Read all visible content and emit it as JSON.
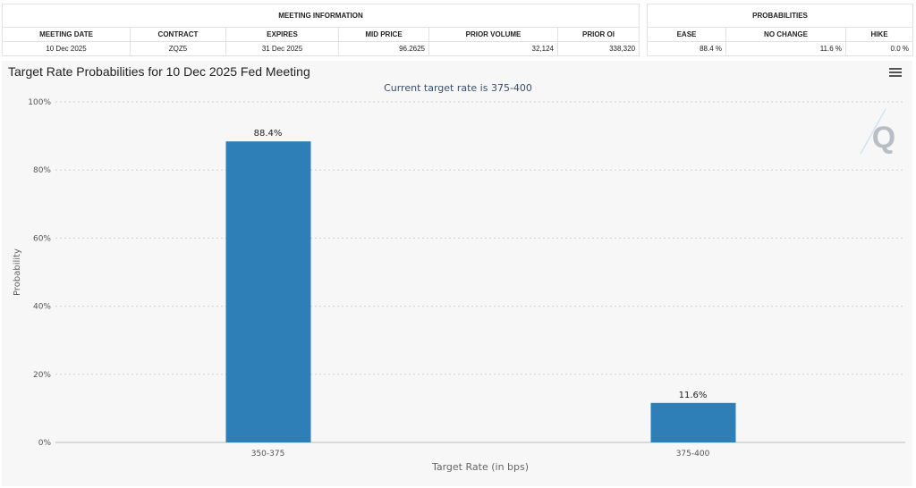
{
  "meeting_info": {
    "title": "MEETING INFORMATION",
    "headers": [
      "MEETING DATE",
      "CONTRACT",
      "EXPIRES",
      "MID PRICE",
      "PRIOR VOLUME",
      "PRIOR OI"
    ],
    "values": [
      "10 Dec 2025",
      "ZQZ5",
      "31 Dec 2025",
      "96.2625",
      "32,124",
      "338,320"
    ]
  },
  "probabilities": {
    "title": "PROBABILITIES",
    "headers": [
      "EASE",
      "NO CHANGE",
      "HIKE"
    ],
    "values": [
      "88.4 %",
      "11.6 %",
      "0.0 %"
    ]
  },
  "chart_data": {
    "type": "bar",
    "title": "Target Rate Probabilities for 10 Dec 2025 Fed Meeting",
    "subtitle": "Current target rate is 375-400",
    "categories": [
      "350-375",
      "375-400"
    ],
    "values": [
      88.4,
      11.6
    ],
    "data_labels": [
      "88.4%",
      "11.6%"
    ],
    "xlabel": "Target Rate (in bps)",
    "ylabel": "Probability",
    "ylim": [
      0,
      100
    ],
    "yticks": [
      "0%",
      "20%",
      "40%",
      "60%",
      "80%",
      "100%"
    ],
    "grid": true,
    "bar_color": "#2e7fb8"
  },
  "icons": {
    "menu": "hamburger-menu-icon",
    "watermark": "q-logo-watermark"
  }
}
